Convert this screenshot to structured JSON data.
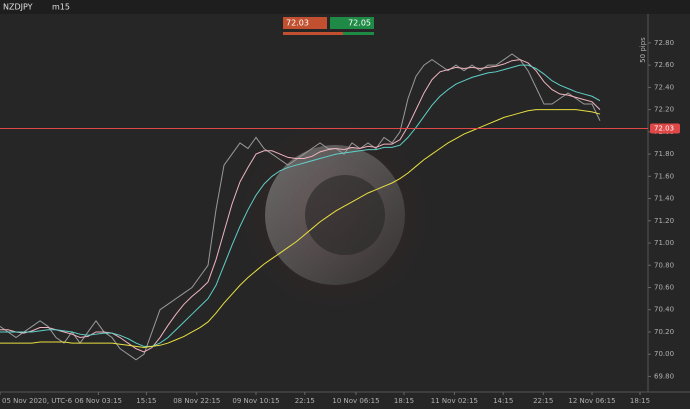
{
  "toolbar": {
    "symbol": "NZDJPY",
    "timeframe": "m15"
  },
  "trade_panel": {
    "sell": "72.03",
    "buy": "72.05"
  },
  "chart_data": {
    "type": "line",
    "annotation": "50 pips",
    "current_price": 72.03,
    "current_price_label": "72.03",
    "x": [
      0,
      1,
      2,
      3,
      4,
      5,
      6,
      7,
      8,
      9,
      10,
      11,
      12,
      13,
      14,
      15,
      16,
      17,
      18,
      19,
      20,
      21,
      22,
      23,
      24,
      25,
      26,
      27,
      28,
      29,
      30,
      31,
      32,
      33,
      34,
      35,
      36,
      37,
      38,
      39,
      40,
      41,
      42,
      43,
      44,
      45,
      46,
      47,
      48,
      49,
      50,
      51,
      52,
      53,
      54,
      55,
      56,
      57,
      58,
      59,
      60,
      61,
      62,
      63,
      64,
      65,
      66,
      67,
      68,
      69,
      70,
      71,
      72,
      73,
      74,
      75
    ],
    "xlim": [
      0,
      81
    ],
    "xticks": [
      {
        "value": 0,
        "label": "05 Nov 2020, UTC-6"
      },
      {
        "value": 12.3,
        "label": "06 Nov 03:15"
      },
      {
        "value": 18.3,
        "label": "15:15"
      },
      {
        "value": 24.6,
        "label": "08 Nov 22:15"
      },
      {
        "value": 32,
        "label": "09 Nov 10:15"
      },
      {
        "value": 38.1,
        "label": "22:15"
      },
      {
        "value": 44.5,
        "label": "10 Nov 06:15"
      },
      {
        "value": 50.5,
        "label": "18:15"
      },
      {
        "value": 56.8,
        "label": "11 Nov 02:15"
      },
      {
        "value": 62.9,
        "label": "14:15"
      },
      {
        "value": 67.9,
        "label": "22:15"
      },
      {
        "value": 74,
        "label": "12 Nov 06:15"
      },
      {
        "value": 80,
        "label": "18:15"
      }
    ],
    "ylim": [
      69.66,
      73.06
    ],
    "yticks": [
      {
        "value": 69.8,
        "label": "69.80"
      },
      {
        "value": 70,
        "label": "70.00"
      },
      {
        "value": 70.2,
        "label": "70.20"
      },
      {
        "value": 70.4,
        "label": "70.40"
      },
      {
        "value": 70.6,
        "label": "70.60"
      },
      {
        "value": 70.8,
        "label": "70.80"
      },
      {
        "value": 71,
        "label": "71.00"
      },
      {
        "value": 71.2,
        "label": "71.20"
      },
      {
        "value": 71.4,
        "label": "71.40"
      },
      {
        "value": 71.6,
        "label": "71.60"
      },
      {
        "value": 71.8,
        "label": "71.80"
      },
      {
        "value": 72,
        "label": "72.00"
      },
      {
        "value": 72.2,
        "label": "72.20"
      },
      {
        "value": 72.4,
        "label": "72.40"
      },
      {
        "value": 72.6,
        "label": "72.60"
      },
      {
        "value": 72.8,
        "label": "72.80"
      }
    ],
    "series": [
      {
        "color": "#9a9a9a",
        "values": [
          70.25,
          70.2,
          70.15,
          70.2,
          70.25,
          70.3,
          70.25,
          70.15,
          70.1,
          70.2,
          70.1,
          70.2,
          70.3,
          70.2,
          70.15,
          70.05,
          70.0,
          69.95,
          70.0,
          70.2,
          70.4,
          70.45,
          70.5,
          70.55,
          70.6,
          70.7,
          70.8,
          71.3,
          71.7,
          71.8,
          71.9,
          71.85,
          71.95,
          71.85,
          71.8,
          71.75,
          71.7,
          71.75,
          71.8,
          71.85,
          71.9,
          71.85,
          71.85,
          71.8,
          71.9,
          71.85,
          71.9,
          71.85,
          71.95,
          71.9,
          72.0,
          72.3,
          72.5,
          72.6,
          72.65,
          72.6,
          72.55,
          72.6,
          72.55,
          72.6,
          72.55,
          72.6,
          72.6,
          72.65,
          72.7,
          72.65,
          72.55,
          72.4,
          72.25,
          72.25,
          72.3,
          72.35,
          72.3,
          72.25,
          72.25,
          72.1
        ]
      },
      {
        "color": "#f0b4c0",
        "values": [
          70.22,
          70.22,
          70.2,
          70.19,
          70.21,
          70.24,
          70.24,
          70.22,
          70.2,
          70.18,
          70.15,
          70.16,
          70.2,
          70.2,
          70.19,
          70.15,
          70.1,
          70.05,
          70.02,
          70.06,
          70.15,
          70.26,
          70.36,
          70.45,
          70.52,
          70.58,
          70.65,
          70.85,
          71.1,
          71.35,
          71.55,
          71.68,
          71.8,
          71.83,
          71.83,
          71.8,
          71.77,
          71.76,
          71.76,
          71.78,
          71.82,
          71.84,
          71.85,
          71.84,
          71.86,
          71.85,
          71.87,
          71.86,
          71.89,
          71.89,
          71.93,
          72.05,
          72.2,
          72.35,
          72.47,
          72.54,
          72.56,
          72.58,
          72.57,
          72.58,
          72.57,
          72.58,
          72.59,
          72.61,
          72.64,
          72.65,
          72.62,
          72.55,
          72.45,
          72.38,
          72.34,
          72.33,
          72.31,
          72.29,
          72.27,
          72.2
        ]
      },
      {
        "color": "#5fd0c8",
        "values": [
          70.2,
          70.2,
          70.2,
          70.2,
          70.2,
          70.21,
          70.22,
          70.22,
          70.21,
          70.2,
          70.18,
          70.17,
          70.18,
          70.19,
          70.19,
          70.17,
          70.14,
          70.1,
          70.07,
          70.07,
          70.1,
          70.15,
          70.22,
          70.29,
          70.36,
          70.43,
          70.5,
          70.62,
          70.8,
          70.98,
          71.15,
          71.3,
          71.43,
          71.53,
          71.6,
          71.65,
          71.68,
          71.7,
          71.72,
          71.74,
          71.76,
          71.78,
          71.8,
          71.81,
          71.82,
          71.83,
          71.84,
          71.84,
          71.86,
          71.86,
          71.88,
          71.95,
          72.04,
          72.14,
          72.24,
          72.32,
          72.38,
          72.43,
          72.46,
          72.49,
          72.51,
          72.53,
          72.54,
          72.56,
          72.58,
          72.6,
          72.6,
          72.57,
          72.52,
          72.46,
          72.42,
          72.39,
          72.36,
          72.34,
          72.32,
          72.28
        ]
      },
      {
        "color": "#e8e040",
        "values": [
          70.1,
          70.1,
          70.1,
          70.1,
          70.1,
          70.11,
          70.11,
          70.11,
          70.11,
          70.1,
          70.1,
          70.1,
          70.1,
          70.1,
          70.1,
          70.09,
          70.08,
          70.07,
          70.06,
          70.07,
          70.08,
          70.1,
          70.13,
          70.16,
          70.2,
          70.24,
          70.29,
          70.37,
          70.46,
          70.54,
          70.62,
          70.69,
          70.75,
          70.81,
          70.86,
          70.91,
          70.96,
          71.01,
          71.07,
          71.13,
          71.19,
          71.24,
          71.29,
          71.33,
          71.37,
          71.41,
          71.45,
          71.48,
          71.51,
          71.54,
          71.58,
          71.63,
          71.69,
          71.75,
          71.8,
          71.85,
          71.9,
          71.94,
          71.98,
          72.01,
          72.04,
          72.07,
          72.1,
          72.13,
          72.15,
          72.17,
          72.19,
          72.2,
          72.2,
          72.2,
          72.2,
          72.2,
          72.2,
          72.19,
          72.18,
          72.16
        ]
      }
    ]
  }
}
